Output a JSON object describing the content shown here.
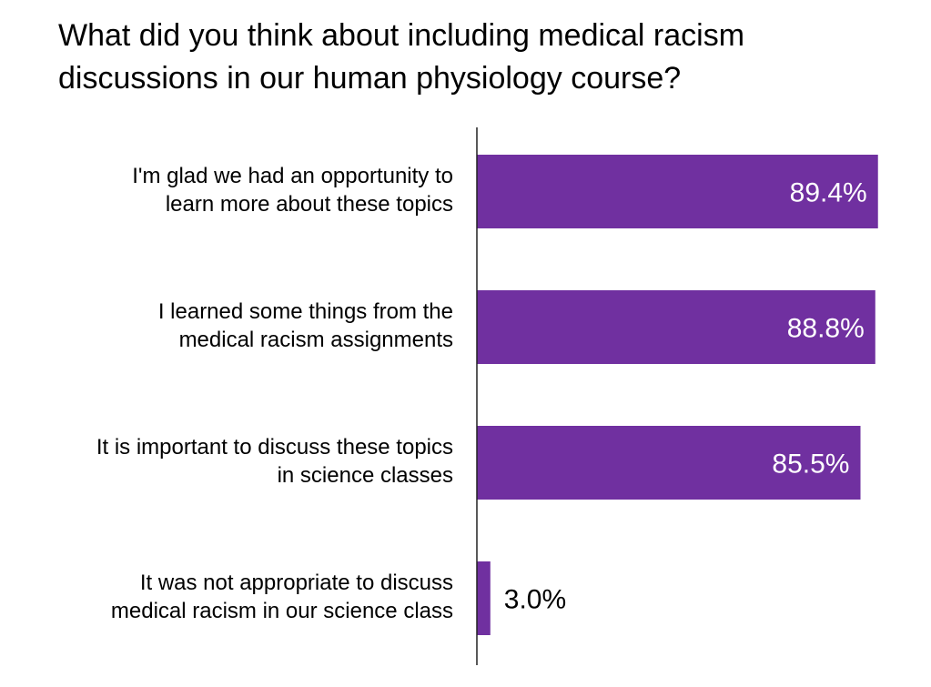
{
  "chart_data": {
    "type": "bar",
    "orientation": "horizontal",
    "title": [
      "What did you think about including medical racism",
      "discussions in our human physiology course?"
    ],
    "categories": [
      [
        "I'm glad we had an opportunity to",
        "learn more about these topics"
      ],
      [
        "I learned some things from the",
        "medical racism assignments"
      ],
      [
        "It is important to discuss these topics",
        "in science classes"
      ],
      [
        "It was not appropriate to discuss",
        "medical racism in our science class"
      ]
    ],
    "values": [
      89.4,
      88.8,
      85.5,
      3.0
    ],
    "data_labels": [
      "89.4%",
      "88.8%",
      "85.5%",
      "3.0%"
    ],
    "xlim": [
      0,
      100
    ],
    "xlabel": "",
    "ylabel": "",
    "grid": false,
    "legend": "none",
    "bar_color": "#7030A0",
    "label_inside_color": "#FFFFFF",
    "label_outside_color": "#000000"
  }
}
